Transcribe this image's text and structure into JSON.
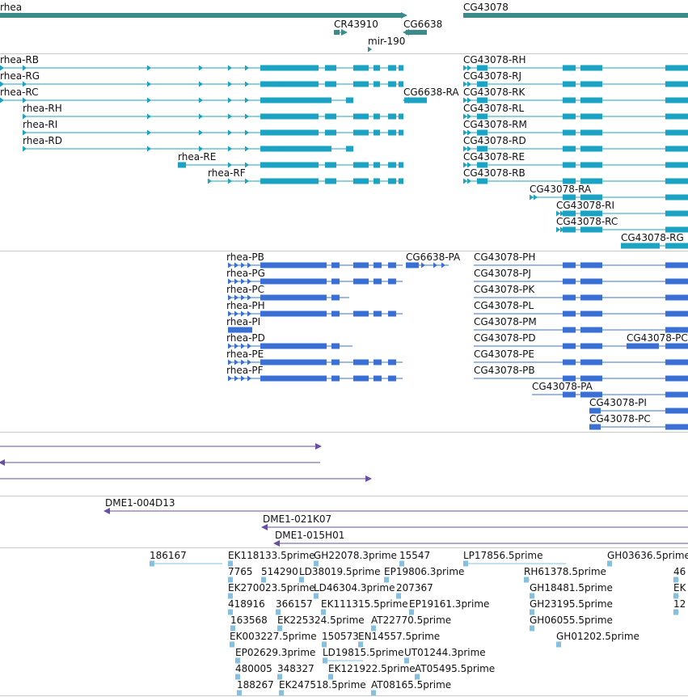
{
  "colors": {
    "gene": "#3a8c8c",
    "transcript": "#1ba3c3",
    "protein": "#3a6fd6",
    "alignment": "#6a4ea6",
    "clone": "#6a4ea6",
    "est": "#86c0e0",
    "separator": "#c8c8c8"
  },
  "gene_track": [
    {
      "name": "rhea"
    },
    {
      "name": "CG43078"
    },
    {
      "name": "CR43910"
    },
    {
      "name": "CG6638"
    },
    {
      "name": "mir-190"
    }
  ],
  "transcript_track": [
    "rhea-RB",
    "rhea-RG",
    "rhea-RC",
    "rhea-RH",
    "rhea-RI",
    "rhea-RD",
    "rhea-RE",
    "rhea-RF",
    "CG6638-RA",
    "CG43078-RH",
    "CG43078-RJ",
    "CG43078-RK",
    "CG43078-RL",
    "CG43078-RM",
    "CG43078-RD",
    "CG43078-RE",
    "CG43078-RB",
    "CG43078-RA",
    "CG43078-RI",
    "CG43078-RC",
    "CG43078-RG"
  ],
  "protein_track": [
    "rhea-PB",
    "rhea-PG",
    "rhea-PC",
    "rhea-PH",
    "rhea-PI",
    "rhea-PD",
    "rhea-PE",
    "rhea-PF",
    "CG6638-PA",
    "CG43078-PH",
    "CG43078-PJ",
    "CG43078-PK",
    "CG43078-PL",
    "CG43078-PM",
    "CG43078-PD",
    "CG43078-PC",
    "CG43078-PE",
    "CG43078-PB",
    "CG43078-PA",
    "CG43078-PI",
    "CG43078-PC"
  ],
  "clone_track": [
    "DME1-004D13",
    "DME1-021K07",
    "DME1-015H01"
  ],
  "est_track": [
    "186167",
    "EK118133.5prime",
    "GH22078.3prime",
    "15547",
    "LP17856.5prime",
    "GH03636.5prime",
    "7765",
    "514290",
    "LD38019.5prime",
    "EP19806.3prime",
    "RH61378.5prime",
    "46",
    "EK270023.5prime",
    "LD46304.3prime",
    "207367",
    "GH18481.5prime",
    "EK",
    "418916",
    "366157",
    "EK111315.5prime",
    "EP19161.3prime",
    "GH23195.5prime",
    "12",
    "163568",
    "EK225324.5prime",
    "AT22770.5prime",
    "GH06055.5prime",
    "EK003227.5prime",
    "150573",
    "EN14557.5prime",
    "GH01202.5prime",
    "EP02629.3prime",
    "LD19815.5prime",
    "UT01244.3prime",
    "480005",
    "348327",
    "EK121922.5prime",
    "AT05495.5prime",
    "188267",
    "EK247518.5prime",
    "AT08165.5prime"
  ]
}
